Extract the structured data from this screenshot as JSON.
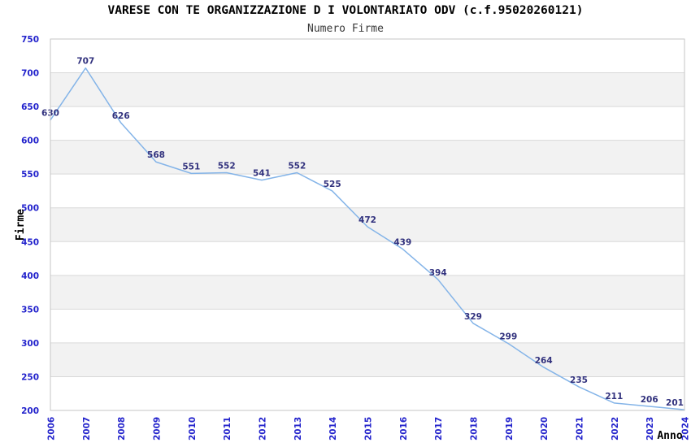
{
  "chart_data": {
    "type": "line",
    "title": "VARESE CON TE ORGANIZZAZIONE D I VOLONTARIATO ODV (c.f.95020260121)",
    "subtitle": "Numero Firme",
    "xlabel": "Anno",
    "ylabel": "Firme",
    "categories": [
      "2006",
      "2007",
      "2008",
      "2009",
      "2010",
      "2011",
      "2012",
      "2013",
      "2014",
      "2015",
      "2016",
      "2017",
      "2018",
      "2019",
      "2020",
      "2021",
      "2022",
      "2023",
      "2024"
    ],
    "values": [
      630,
      707,
      626,
      568,
      551,
      552,
      541,
      552,
      525,
      472,
      439,
      394,
      329,
      299,
      264,
      235,
      211,
      206,
      201
    ],
    "ylim": [
      200,
      750
    ],
    "ytick_step": 50,
    "yticks": [
      750,
      700,
      650,
      600,
      550,
      500,
      450,
      400,
      350,
      300,
      250,
      200
    ],
    "grid": true,
    "legend": false,
    "alternating_bands": true,
    "colors": {
      "line": "#84b4e8",
      "data_label": "#32327e",
      "tick_label": "#2323cc",
      "band": "#f2f2f2",
      "gridline": "#d9d9d9",
      "plot_border": "#c6c6c6",
      "title": "#000000",
      "subtitle": "#3a3a3a",
      "axis_title": "#000000",
      "background": "#ffffff"
    }
  }
}
